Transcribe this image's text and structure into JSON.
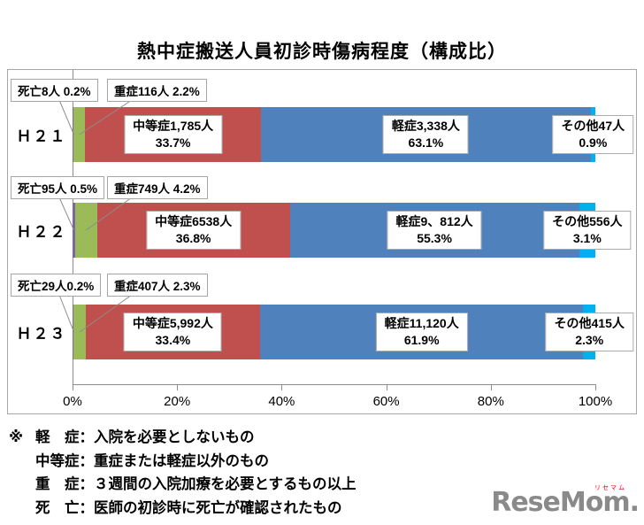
{
  "chart_data": {
    "type": "bar",
    "stacked": true,
    "orientation": "horizontal",
    "title": "熱中症搬送人員初診時傷病程度（構成比）",
    "categories": [
      "Ｈ２１",
      "Ｈ２２",
      "Ｈ２３"
    ],
    "series": [
      {
        "name": "死亡",
        "color": "#8064A2",
        "counts": [
          8,
          95,
          29
        ],
        "percents": [
          0.2,
          0.5,
          0.2
        ]
      },
      {
        "name": "重症",
        "color": "#9BBB59",
        "counts": [
          116,
          749,
          407
        ],
        "percents": [
          2.2,
          4.2,
          2.3
        ]
      },
      {
        "name": "中等症",
        "color": "#C0504D",
        "counts": [
          1785,
          6538,
          5992
        ],
        "percents": [
          33.7,
          36.8,
          33.4
        ]
      },
      {
        "name": "軽症",
        "color": "#4F81BD",
        "counts": [
          3338,
          9812,
          11120
        ],
        "percents": [
          63.1,
          55.3,
          61.9
        ]
      },
      {
        "name": "その他",
        "color": "#00B0F0",
        "counts": [
          47,
          556,
          415
        ],
        "percents": [
          0.9,
          3.1,
          2.3
        ]
      }
    ],
    "x_ticks": [
      "0%",
      "20%",
      "40%",
      "60%",
      "80%",
      "100%"
    ],
    "xlim": [
      0,
      100
    ],
    "grid": false,
    "legend": "none",
    "labels": {
      "callouts": [
        [
          "死亡8人 0.2%",
          "重症116人 2.2%"
        ],
        [
          "死亡95人 0.5%",
          "重症749人 4.2%"
        ],
        [
          "死亡29人0.2%",
          "重症407人 2.3%"
        ]
      ],
      "inbar": [
        [
          [
            "中等症1,785人",
            "33.7%"
          ],
          [
            "軽症3,338人",
            "63.1%"
          ],
          [
            "その他47人",
            "0.9%"
          ]
        ],
        [
          [
            "中等症6538人",
            "36.8%"
          ],
          [
            "軽症9、812人",
            "55.3%"
          ],
          [
            "その他556人",
            "3.1%"
          ]
        ],
        [
          [
            "中等症5,992人",
            "33.4%"
          ],
          [
            "軽症11,120人",
            "61.9%"
          ],
          [
            "その他415人",
            "2.3%"
          ]
        ]
      ]
    }
  },
  "footnote": {
    "marker": "※",
    "lines": [
      "軽　症：入院を必要としないもの",
      "中等症：重症または軽症以外のもの",
      "重　症：３週間の入院加療を必要とするもの以上",
      "死　亡：医師の初診時に死亡が確認されたもの"
    ]
  },
  "logo": {
    "text": "ReseMom.",
    "tagline": "リセマム",
    "text_color": "#8A8A8A",
    "tagline_color": "#E60012"
  }
}
